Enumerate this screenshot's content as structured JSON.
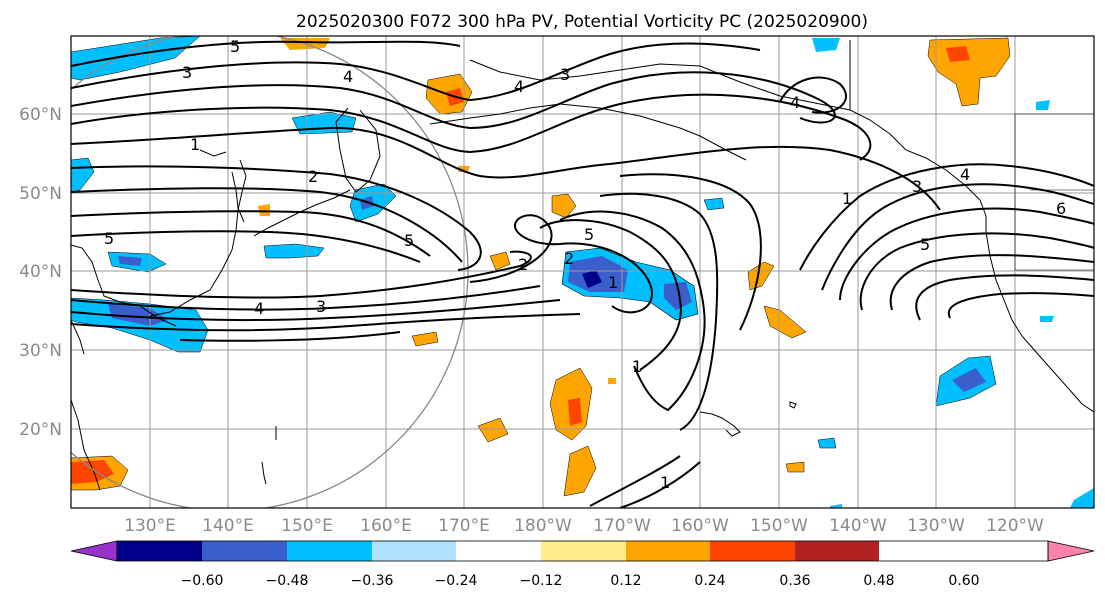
{
  "title": "2025020300 F072 300 hPa PV, Potential Vorticity PC (2025020900)",
  "map": {
    "lat_labels": [
      "60°N",
      "50°N",
      "40°N",
      "30°N",
      "20°N"
    ],
    "lon_labels": [
      "130°E",
      "140°E",
      "150°E",
      "160°E",
      "170°E",
      "180°W",
      "170°W",
      "160°W",
      "150°W",
      "140°W",
      "130°W",
      "120°W"
    ],
    "contour_labels": [
      "5",
      "3",
      "4",
      "4",
      "1",
      "2",
      "2",
      "5",
      "5",
      "4",
      "3",
      "2",
      "5",
      "1",
      "1",
      "3",
      "4",
      "5",
      "6",
      "4",
      "3",
      "1",
      "1"
    ],
    "gridline_color": "#9a9a9a",
    "contour_color": "#000000"
  },
  "colorbar": {
    "ticks": [
      "−0.60",
      "−0.48",
      "−0.36",
      "−0.24",
      "−0.12",
      "0.12",
      "0.24",
      "0.36",
      "0.48",
      "0.60"
    ],
    "colors": [
      "#9932cc",
      "#00008b",
      "#3a5fcd",
      "#00bfff",
      "#b0e2ff",
      "#ffffff",
      "#ffec8b",
      "#ffa500",
      "#ff4500",
      "#b22222",
      "#ff82ab"
    ]
  }
}
